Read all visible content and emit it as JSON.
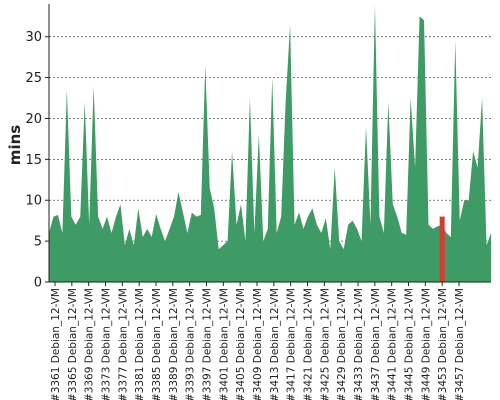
{
  "chart_data": {
    "type": "area",
    "ylabel": "mins",
    "xlabel": "",
    "ylim": [
      0,
      34
    ],
    "yticks": [
      0,
      5,
      10,
      15,
      20,
      25,
      30
    ],
    "grid": true,
    "fill_color": "#3f9b65",
    "highlight_color": "#d93a2f",
    "highlight_build": "#3453",
    "x_tick_labels": [
      "#3361 Debian_12-VM",
      "#3365 Debian_12-VM",
      "#3369 Debian_12-VM",
      "#3373 Debian_12-VM",
      "#3377 Debian_12-VM",
      "#3381 Debian_12-VM",
      "#3385 Debian_12-VM",
      "#3389 Debian_12-VM",
      "#3393 Debian_12-VM",
      "#3397 Debian_12-VM",
      "#3401 Debian_12-VM",
      "#3405 Debian_12-VM",
      "#3409 Debian_12-VM",
      "#3413 Debian_12-VM",
      "#3417 Debian_12-VM",
      "#3421 Debian_12-VM",
      "#3425 Debian_12-VM",
      "#3429 Debian_12-VM",
      "#3433 Debian_12-VM",
      "#3437 Debian_12-VM",
      "#3441 Debian_12-VM",
      "#3445 Debian_12-VM",
      "#3449 Debian_12-VM",
      "#3453 Debian_12-VM",
      "#3457 Debian_12-VM"
    ],
    "values": [
      6.0,
      8.0,
      8.2,
      6.0,
      23.5,
      8.0,
      7.0,
      8.0,
      22.0,
      7.0,
      24.0,
      8.0,
      6.5,
      8.0,
      6.0,
      8.0,
      9.5,
      4.5,
      6.5,
      4.5,
      9.0,
      5.5,
      6.5,
      5.5,
      8.3,
      6.5,
      5.0,
      6.5,
      8.0,
      11.0,
      8.5,
      6.0,
      8.5,
      8.0,
      8.2,
      26.5,
      11.5,
      9.0,
      4.0,
      4.5,
      5.0,
      16.0,
      7.0,
      9.5,
      5.0,
      22.5,
      6.0,
      18.0,
      5.0,
      6.5,
      25.0,
      6.0,
      8.0,
      22.0,
      31.5,
      7.0,
      8.5,
      6.5,
      8.0,
      9.0,
      7.0,
      6.0,
      7.8,
      4.0,
      14.0,
      5.0,
      4.0,
      7.0,
      7.5,
      6.5,
      5.0,
      19.0,
      7.0,
      34.0,
      8.0,
      6.0,
      22.0,
      9.5,
      8.0,
      6.0,
      5.8,
      22.5,
      14.0,
      32.5,
      32.0,
      7.0,
      6.5,
      6.8,
      7.0,
      6.0,
      5.5,
      29.5,
      7.5,
      10.0,
      10.0,
      16.0,
      14.0,
      22.5,
      4.5,
      6.0
    ],
    "highlight_value": 8.0
  }
}
